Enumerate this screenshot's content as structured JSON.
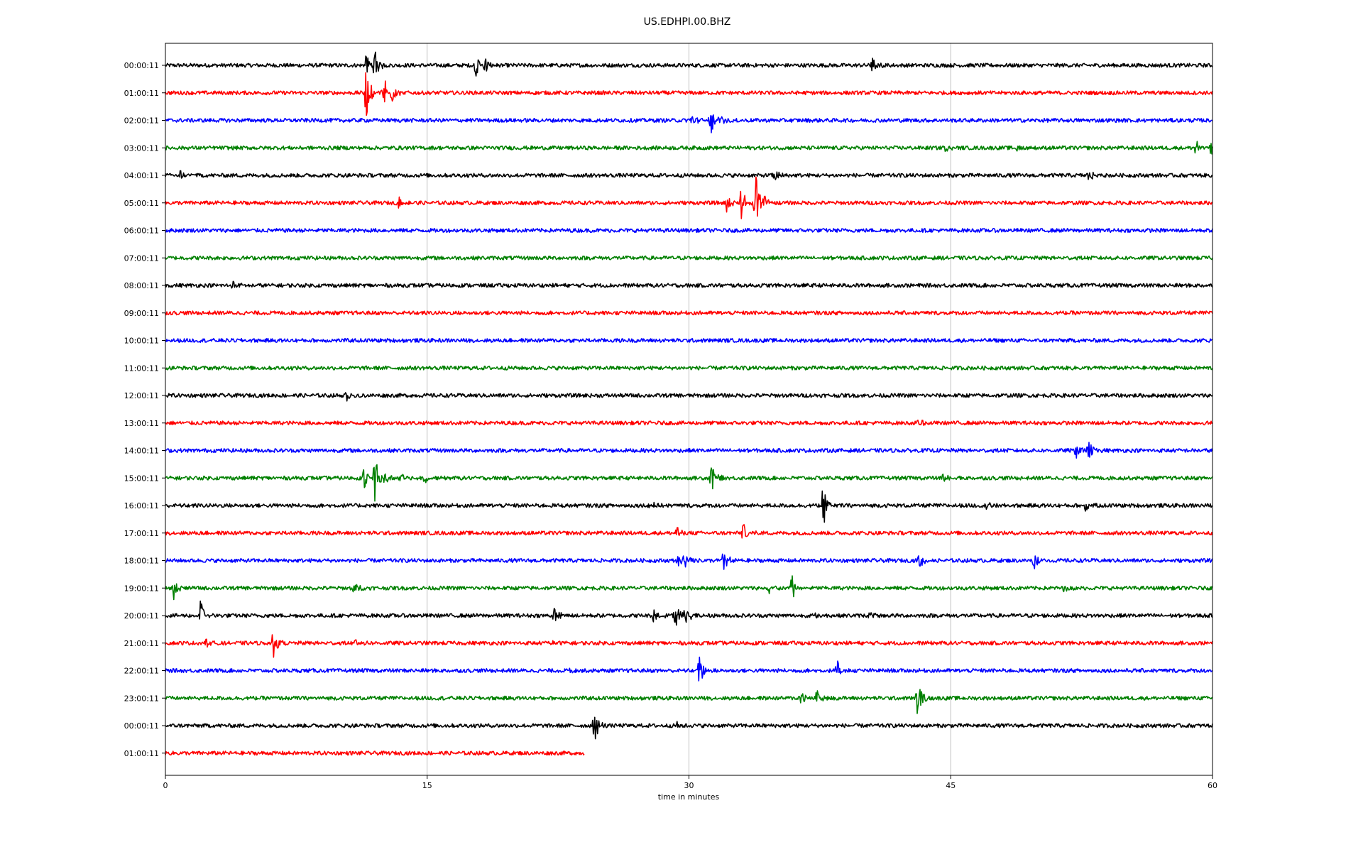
{
  "chart_data": {
    "type": "line",
    "title": "US.EDHPI.00.BHZ",
    "xlabel": "time in minutes",
    "ylabel": "",
    "xlim": [
      0,
      60
    ],
    "x_ticks": [
      0,
      15,
      30,
      45,
      60
    ],
    "grid": "vertical",
    "trace_colors": [
      "#000000",
      "#ff0000",
      "#0000ff",
      "#008000"
    ],
    "rows": [
      {
        "label": "00:00:11",
        "color": "#000000",
        "end": 60,
        "events": [
          {
            "t": 11.5,
            "amp": 0.6
          },
          {
            "t": 12.0,
            "amp": 0.7
          },
          {
            "t": 17.8,
            "amp": 0.55
          },
          {
            "t": 18.3,
            "amp": 0.45
          },
          {
            "t": 40.5,
            "amp": 0.45
          }
        ]
      },
      {
        "label": "01:00:11",
        "color": "#ff0000",
        "end": 60,
        "events": [
          {
            "t": 11.5,
            "amp": 1.3
          },
          {
            "t": 12.5,
            "amp": 1.1
          },
          {
            "t": 13.0,
            "amp": 0.5
          }
        ]
      },
      {
        "label": "02:00:11",
        "color": "#0000ff",
        "end": 60,
        "events": [
          {
            "t": 30.1,
            "amp": 0.45
          },
          {
            "t": 31.2,
            "amp": 0.9
          },
          {
            "t": 31.8,
            "amp": 0.3
          }
        ]
      },
      {
        "label": "03:00:11",
        "color": "#008000",
        "end": 60,
        "events": [
          {
            "t": 44.6,
            "amp": 0.3
          },
          {
            "t": 48.8,
            "amp": 0.2
          },
          {
            "t": 59.0,
            "amp": 0.45
          },
          {
            "t": 59.9,
            "amp": 0.35
          }
        ]
      },
      {
        "label": "04:00:11",
        "color": "#000000",
        "end": 60,
        "events": [
          {
            "t": 0.8,
            "amp": 0.3
          },
          {
            "t": 34.9,
            "amp": 0.35
          },
          {
            "t": 52.9,
            "amp": 0.3
          }
        ]
      },
      {
        "label": "05:00:11",
        "color": "#ff0000",
        "end": 60,
        "events": [
          {
            "t": 13.4,
            "amp": 0.25
          },
          {
            "t": 32.2,
            "amp": 0.5
          },
          {
            "t": 33.0,
            "amp": 0.8
          },
          {
            "t": 33.8,
            "amp": 1.6
          },
          {
            "t": 34.3,
            "amp": 0.6
          }
        ]
      },
      {
        "label": "06:00:11",
        "color": "#0000ff",
        "end": 60,
        "events": []
      },
      {
        "label": "07:00:11",
        "color": "#008000",
        "end": 60,
        "events": []
      },
      {
        "label": "08:00:11",
        "color": "#000000",
        "end": 60,
        "events": [
          {
            "t": 3.9,
            "amp": 0.2
          }
        ]
      },
      {
        "label": "09:00:11",
        "color": "#ff0000",
        "end": 60,
        "events": []
      },
      {
        "label": "10:00:11",
        "color": "#0000ff",
        "end": 60,
        "events": []
      },
      {
        "label": "11:00:11",
        "color": "#008000",
        "end": 60,
        "events": []
      },
      {
        "label": "12:00:11",
        "color": "#000000",
        "end": 60,
        "events": [
          {
            "t": 10.4,
            "amp": 0.2
          }
        ]
      },
      {
        "label": "13:00:11",
        "color": "#ff0000",
        "end": 60,
        "events": [
          {
            "t": 43.2,
            "amp": 0.15
          }
        ]
      },
      {
        "label": "14:00:11",
        "color": "#0000ff",
        "end": 60,
        "events": [
          {
            "t": 52.2,
            "amp": 0.5
          },
          {
            "t": 52.9,
            "amp": 0.5
          }
        ]
      },
      {
        "label": "15:00:11",
        "color": "#008000",
        "end": 60,
        "events": [
          {
            "t": 11.4,
            "amp": 0.7
          },
          {
            "t": 12.0,
            "amp": 1.2
          },
          {
            "t": 12.6,
            "amp": 0.6
          },
          {
            "t": 13.5,
            "amp": 0.35
          },
          {
            "t": 14.8,
            "amp": 0.25
          },
          {
            "t": 31.3,
            "amp": 0.8
          },
          {
            "t": 44.6,
            "amp": 0.3
          }
        ]
      },
      {
        "label": "16:00:11",
        "color": "#000000",
        "end": 60,
        "events": [
          {
            "t": 27.8,
            "amp": 0.2
          },
          {
            "t": 37.7,
            "amp": 1.0
          },
          {
            "t": 47.1,
            "amp": 0.2
          },
          {
            "t": 52.7,
            "amp": 0.3
          }
        ]
      },
      {
        "label": "17:00:11",
        "color": "#ff0000",
        "end": 60,
        "events": [
          {
            "t": 29.3,
            "amp": 0.4
          },
          {
            "t": 33.1,
            "amp": 0.5
          }
        ]
      },
      {
        "label": "18:00:11",
        "color": "#0000ff",
        "end": 60,
        "events": [
          {
            "t": 29.4,
            "amp": 0.4
          },
          {
            "t": 29.8,
            "amp": 0.35
          },
          {
            "t": 32.0,
            "amp": 0.6
          },
          {
            "t": 43.2,
            "amp": 0.45
          },
          {
            "t": 49.8,
            "amp": 0.45
          }
        ]
      },
      {
        "label": "19:00:11",
        "color": "#008000",
        "end": 60,
        "events": [
          {
            "t": 0.5,
            "amp": 0.55
          },
          {
            "t": 10.8,
            "amp": 0.35
          },
          {
            "t": 34.6,
            "amp": 0.4
          },
          {
            "t": 35.9,
            "amp": 0.6
          },
          {
            "t": 51.5,
            "amp": 0.15
          }
        ]
      },
      {
        "label": "20:00:11",
        "color": "#000000",
        "end": 60,
        "events": [
          {
            "t": 2.0,
            "amp": 0.9
          },
          {
            "t": 22.3,
            "amp": 0.4
          },
          {
            "t": 28.0,
            "amp": 0.6
          },
          {
            "t": 29.2,
            "amp": 0.8
          },
          {
            "t": 29.8,
            "amp": 0.6
          },
          {
            "t": 37.3,
            "amp": 0.2
          },
          {
            "t": 40.4,
            "amp": 0.2
          }
        ]
      },
      {
        "label": "21:00:11",
        "color": "#ff0000",
        "end": 60,
        "events": [
          {
            "t": 2.3,
            "amp": 0.2
          },
          {
            "t": 6.2,
            "amp": 0.7
          },
          {
            "t": 10.9,
            "amp": 0.2
          },
          {
            "t": 22.0,
            "amp": 0.15
          }
        ]
      },
      {
        "label": "22:00:11",
        "color": "#0000ff",
        "end": 60,
        "events": [
          {
            "t": 23.1,
            "amp": 0.15
          },
          {
            "t": 30.6,
            "amp": 0.8
          },
          {
            "t": 38.5,
            "amp": 0.45
          }
        ]
      },
      {
        "label": "23:00:11",
        "color": "#008000",
        "end": 60,
        "events": [
          {
            "t": 36.4,
            "amp": 0.5
          },
          {
            "t": 37.3,
            "amp": 0.45
          },
          {
            "t": 43.1,
            "amp": 0.9
          }
        ]
      },
      {
        "label": "00:00:11",
        "color": "#000000",
        "end": 60,
        "events": [
          {
            "t": 24.6,
            "amp": 0.9
          },
          {
            "t": 29.3,
            "amp": 0.2
          }
        ]
      },
      {
        "label": "01:00:11",
        "color": "#ff0000",
        "end": 24.0,
        "events": []
      }
    ]
  }
}
